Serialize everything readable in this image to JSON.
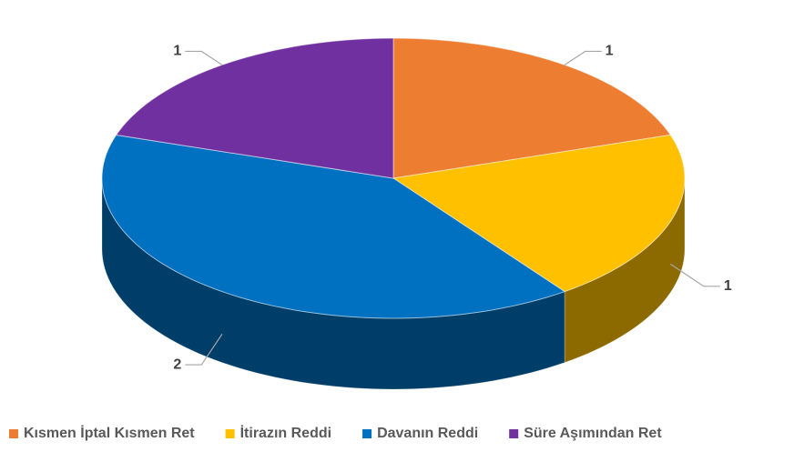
{
  "chart_data": {
    "type": "pie3d",
    "categories": [
      "Kısmen İptal Kısmen Ret",
      "İtirazın Reddi",
      "Davanın Reddi",
      "Süre Aşımından Ret"
    ],
    "values": [
      1,
      1,
      2,
      1
    ],
    "colors": [
      "#ED7D31",
      "#FFC000",
      "#0070C0",
      "#7030A0"
    ],
    "legend": "bottom"
  }
}
